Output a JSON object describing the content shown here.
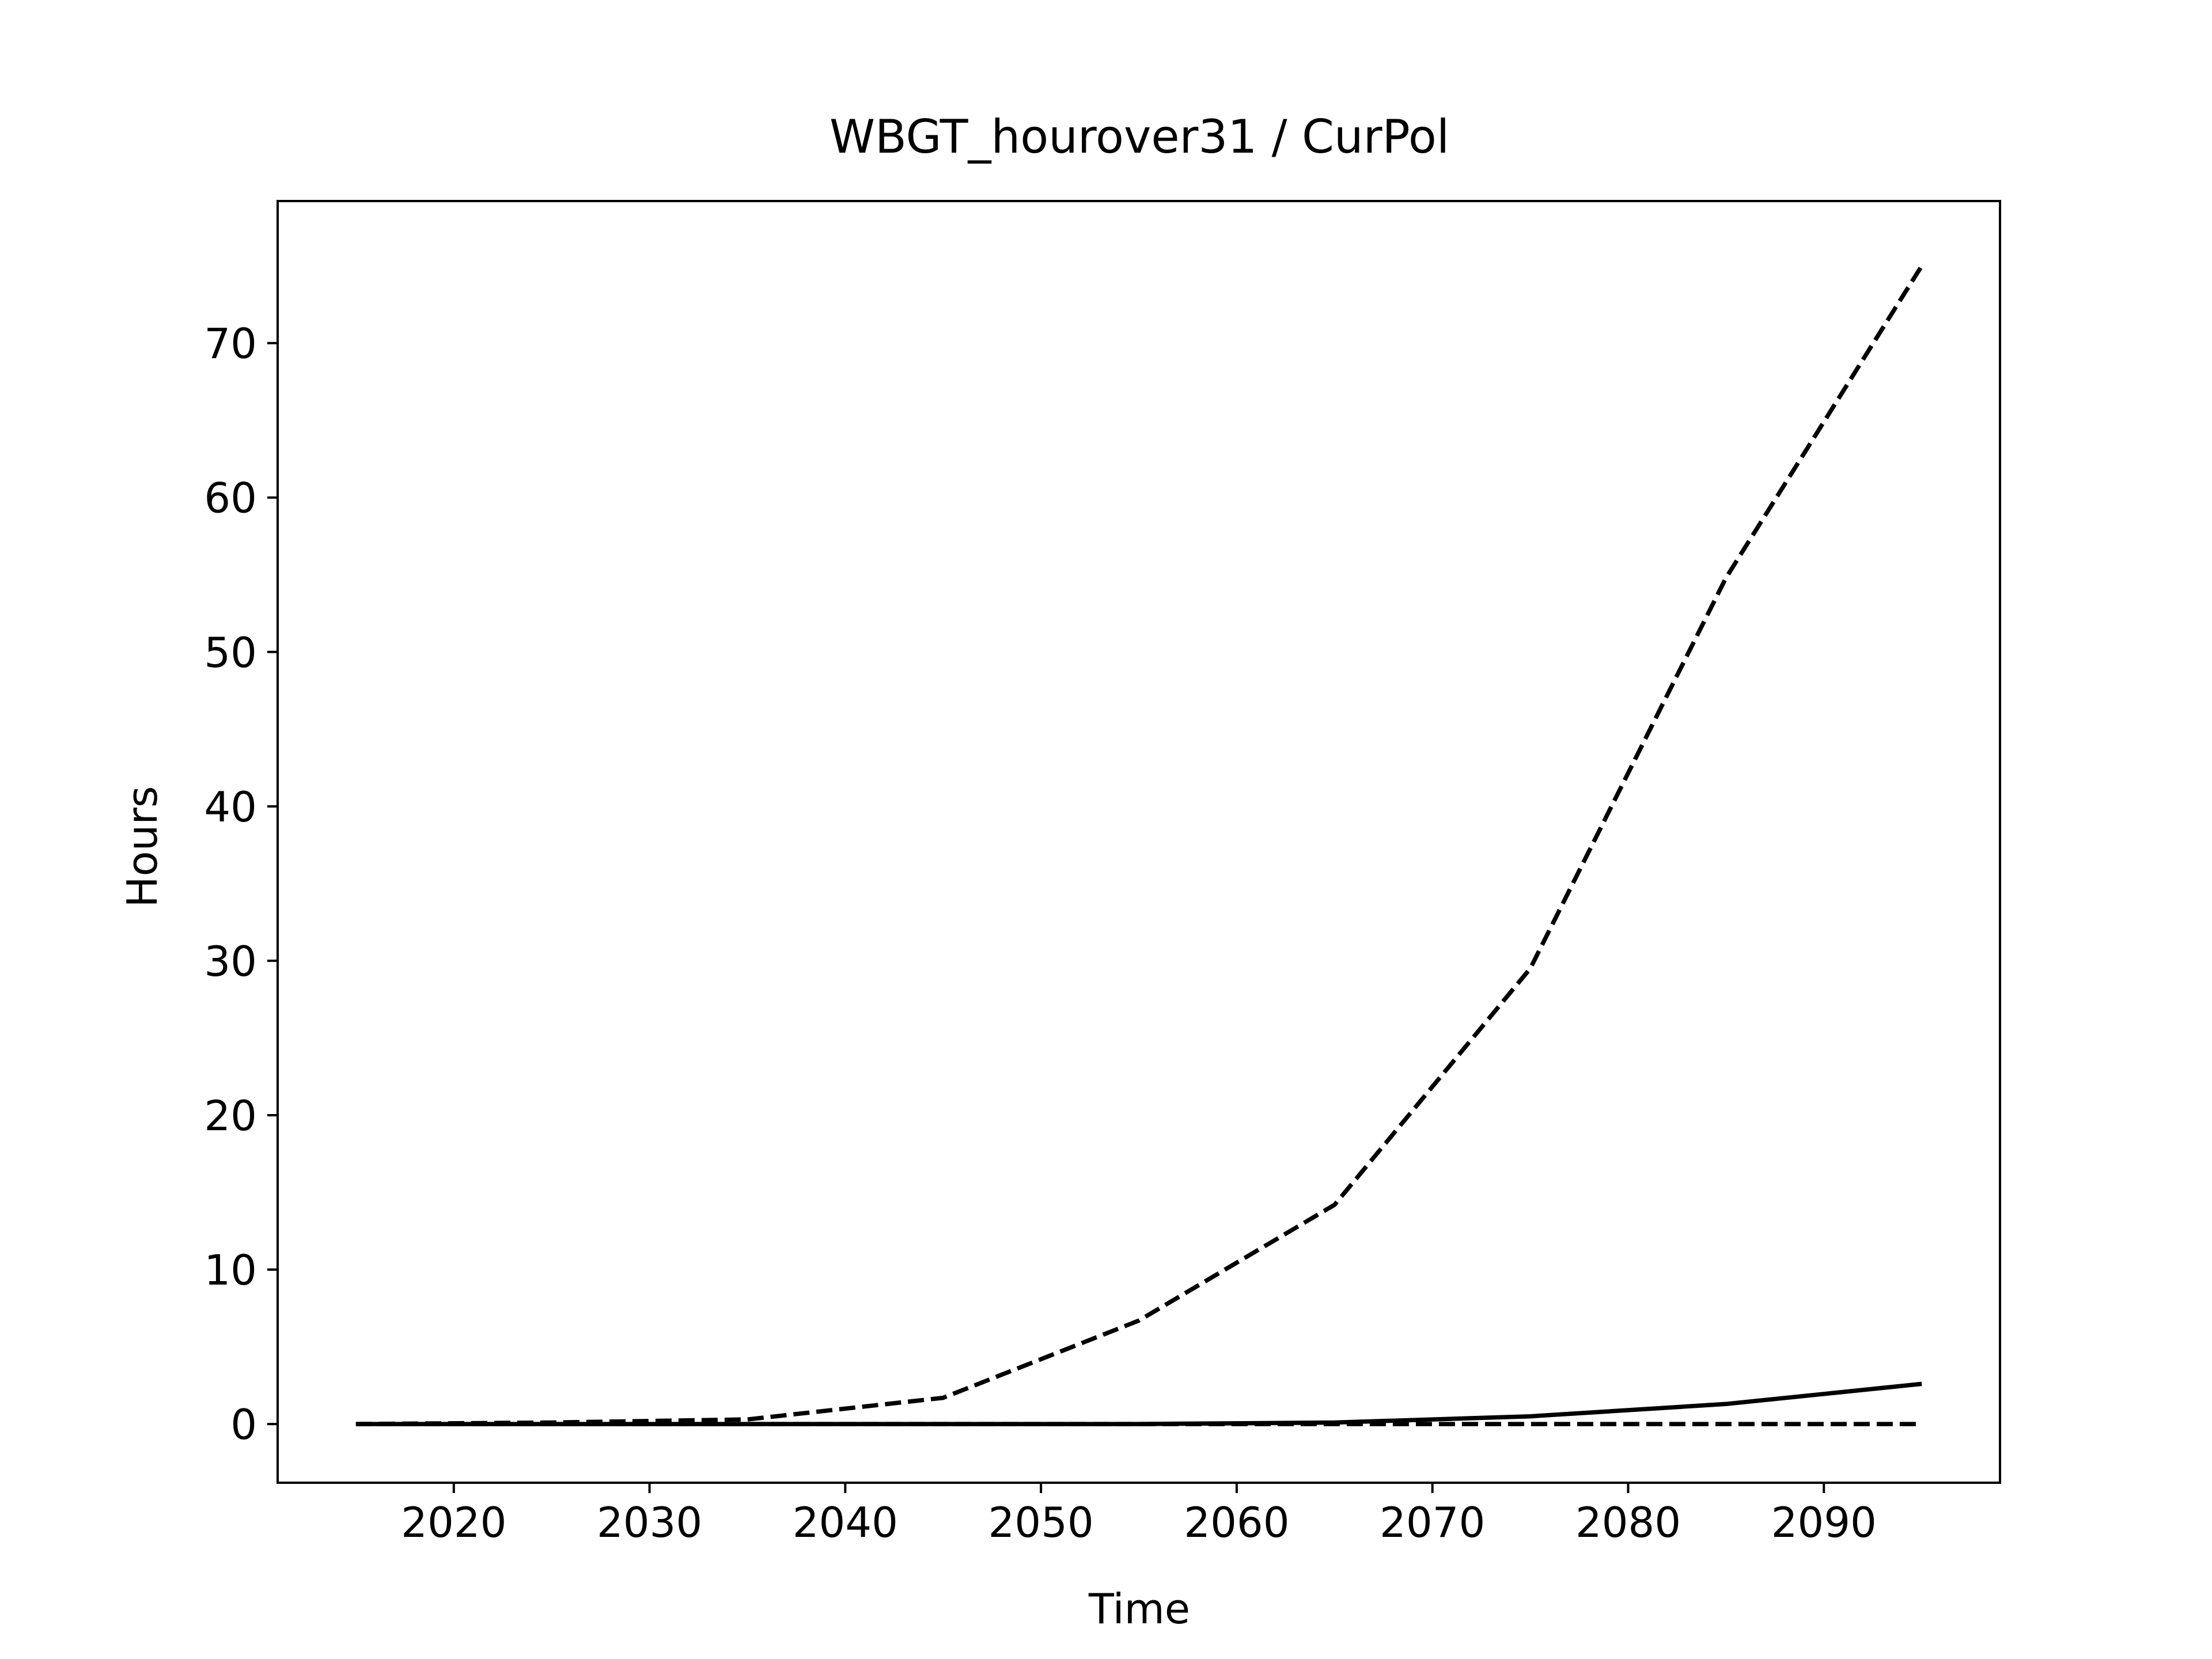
{
  "chart_data": {
    "type": "line",
    "title": "WBGT_hourover31 / CurPol",
    "xlabel": "Time",
    "ylabel": "Hours",
    "xlim": [
      2011,
      2099
    ],
    "ylim": [
      -3.8,
      79.2
    ],
    "xticks": [
      2020,
      2030,
      2040,
      2050,
      2060,
      2070,
      2080,
      2090
    ],
    "yticks": [
      0,
      10,
      20,
      30,
      40,
      50,
      60,
      70
    ],
    "grid": false,
    "legend": "none",
    "x": [
      2015,
      2025,
      2035,
      2045,
      2055,
      2065,
      2075,
      2085,
      2095
    ],
    "series": [
      {
        "style": "dashed",
        "values": [
          0.0,
          0.1,
          0.3,
          1.7,
          6.7,
          14.2,
          29.5,
          54.8,
          75.0
        ]
      },
      {
        "style": "solid",
        "values": [
          0.0,
          0.0,
          0.0,
          0.0,
          0.0,
          0.1,
          0.5,
          1.3,
          2.6
        ]
      },
      {
        "style": "dashed",
        "values": [
          0.0,
          0.0,
          0.0,
          0.0,
          0.0,
          0.0,
          0.0,
          0.0,
          0.0
        ]
      }
    ],
    "line_color": "#000000"
  }
}
